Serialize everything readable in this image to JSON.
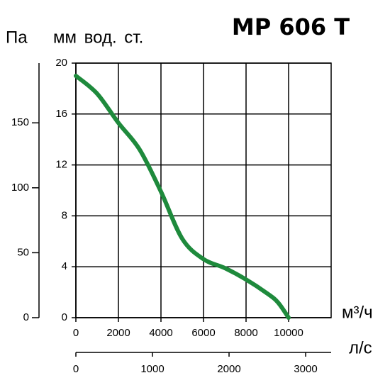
{
  "chart_data": {
    "type": "line",
    "title": "MP 606 T",
    "x": [
      0,
      1000,
      2000,
      3000,
      4000,
      5000,
      6000,
      7000,
      8000,
      9000,
      9500,
      10000
    ],
    "series": [
      {
        "color": "#1e8a3c",
        "values": [
          19,
          17.6,
          15.3,
          13.2,
          9.9,
          6.2,
          4.6,
          3.9,
          3.0,
          1.9,
          1.2,
          0
        ]
      }
    ],
    "xlim": [
      0,
      12000
    ],
    "xticks": [
      0,
      2000,
      4000,
      6000,
      8000,
      10000
    ],
    "x_label": "м³/ч",
    "ylim": [
      0,
      20
    ],
    "yticks": [
      0,
      4,
      8,
      12,
      16,
      20
    ],
    "y_label": "мм  вод. ст.",
    "y2lim": [
      0,
      196
    ],
    "y2ticks": [
      0,
      50,
      100,
      150
    ],
    "y2_label": "Па",
    "x2lim": [
      0,
      3333
    ],
    "x2ticks": [
      0,
      1000,
      2000,
      3000
    ],
    "x2_label": "л/с",
    "grid": true
  }
}
